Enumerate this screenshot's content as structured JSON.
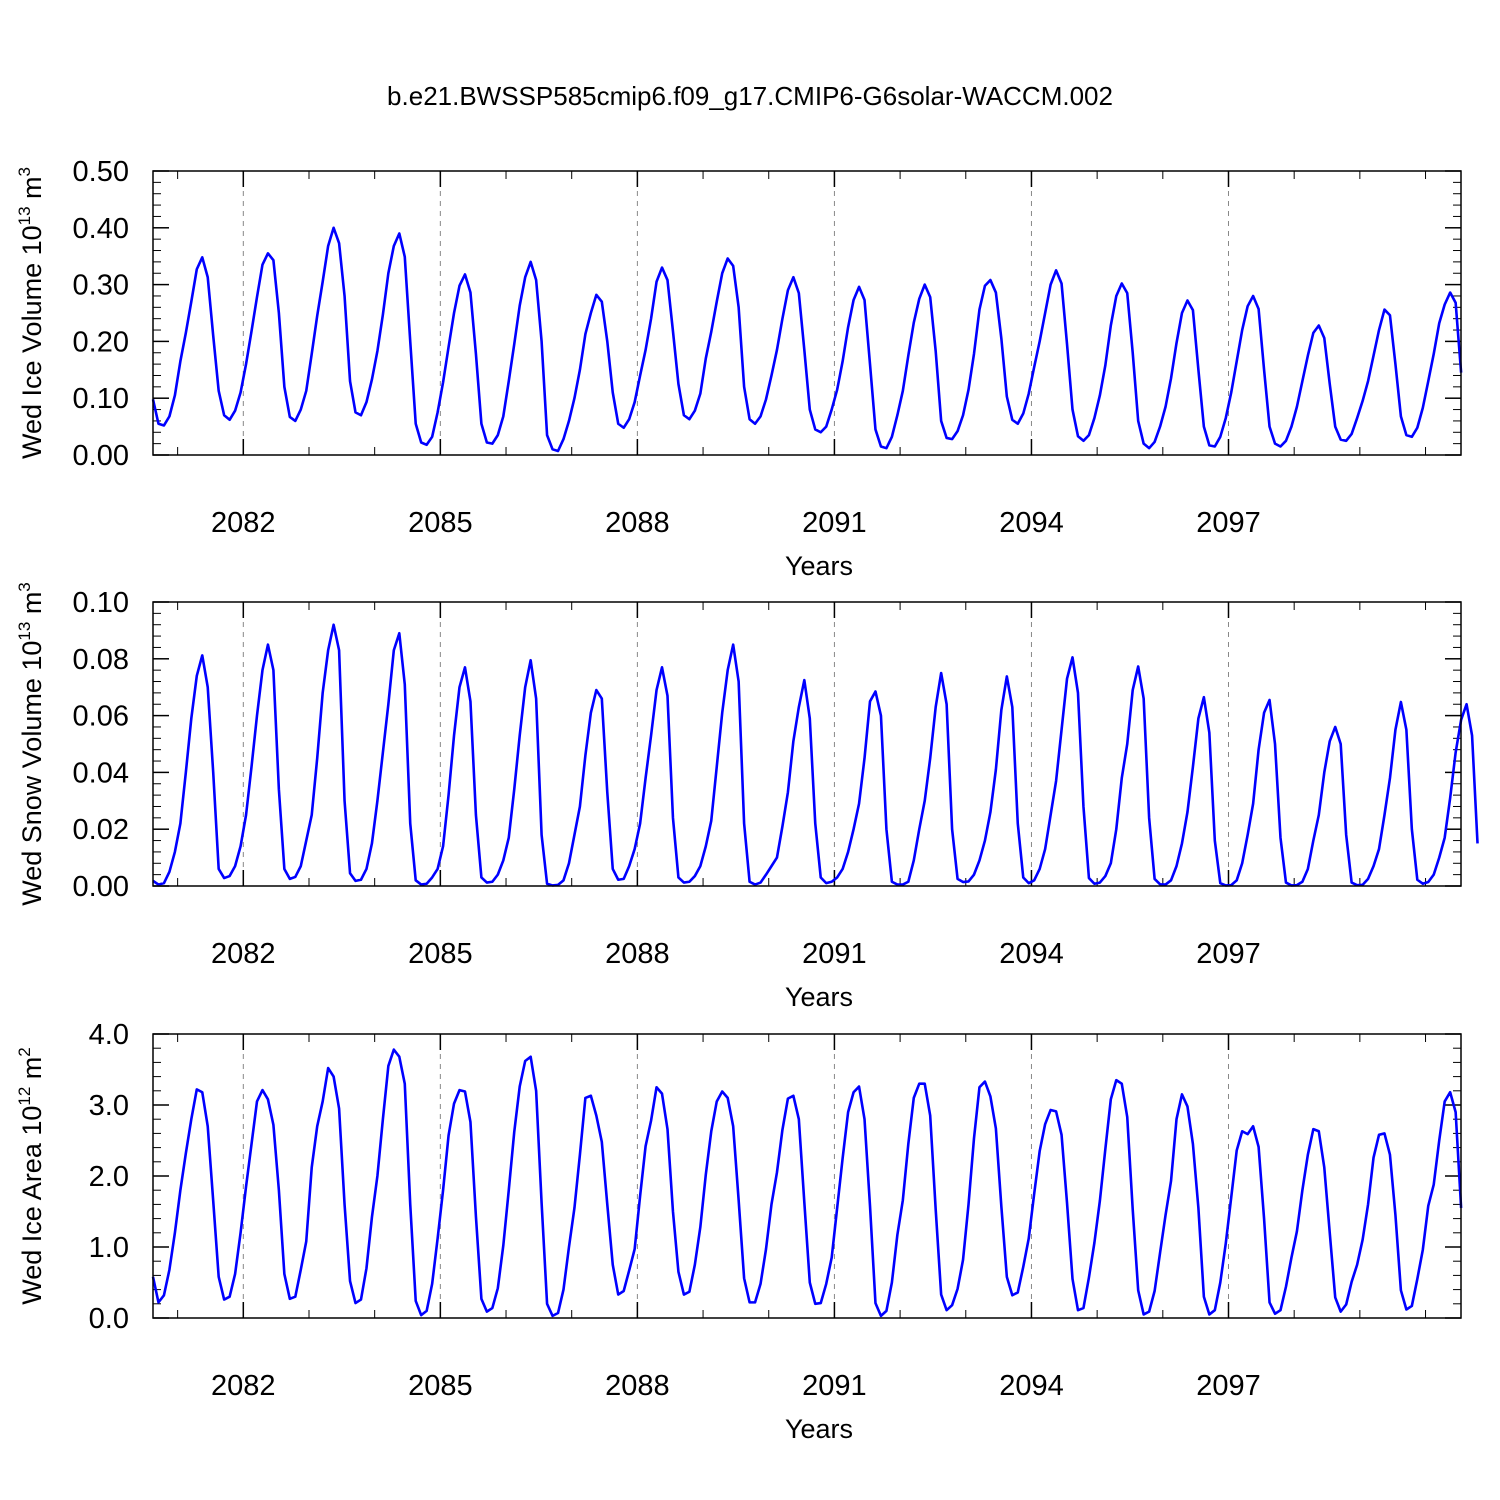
{
  "title": "b.e21.BWSSP585cmip6.f09_g17.CMIP6-G6solar-WACCM.002",
  "colors": {
    "line": "#0000ff",
    "axis": "#000000",
    "grid": "#888888"
  },
  "chart_data": [
    {
      "type": "line",
      "ylabel_main": "Wed Ice Volume 10",
      "ylabel_exp": "13",
      "ylabel_unit": " m",
      "ylabel_unit_exp": "3",
      "xlabel": "Years",
      "ylim": [
        0.0,
        0.5
      ],
      "yticks": [
        0.0,
        0.1,
        0.2,
        0.3,
        0.4,
        0.5
      ],
      "ytick_labels": [
        "0.00",
        "0.10",
        "0.20",
        "0.30",
        "0.40",
        "0.50"
      ],
      "xlim": [
        2080.625,
        2100.54
      ],
      "xticks": [
        2082,
        2085,
        2088,
        2091,
        2094,
        2097
      ],
      "xtick_labels": [
        "2082",
        "2085",
        "2088",
        "2091",
        "2094",
        "2097"
      ],
      "series": [
        {
          "name": "Wed Ice Volume",
          "x_start": 2080.625,
          "x_step": 0.0833333,
          "values": [
            0.098,
            0.055,
            0.052,
            0.068,
            0.105,
            0.165,
            0.215,
            0.27,
            0.327,
            0.348,
            0.313,
            0.21,
            0.113,
            0.07,
            0.062,
            0.078,
            0.11,
            0.16,
            0.218,
            0.278,
            0.335,
            0.355,
            0.343,
            0.25,
            0.12,
            0.067,
            0.06,
            0.08,
            0.113,
            0.178,
            0.245,
            0.305,
            0.368,
            0.4,
            0.373,
            0.28,
            0.13,
            0.075,
            0.07,
            0.093,
            0.133,
            0.183,
            0.247,
            0.32,
            0.368,
            0.39,
            0.349,
            0.2,
            0.055,
            0.022,
            0.018,
            0.032,
            0.075,
            0.128,
            0.19,
            0.25,
            0.298,
            0.318,
            0.286,
            0.178,
            0.055,
            0.022,
            0.02,
            0.035,
            0.068,
            0.13,
            0.195,
            0.263,
            0.313,
            0.34,
            0.308,
            0.2,
            0.035,
            0.01,
            0.007,
            0.028,
            0.06,
            0.1,
            0.15,
            0.213,
            0.25,
            0.282,
            0.27,
            0.2,
            0.11,
            0.055,
            0.048,
            0.063,
            0.093,
            0.14,
            0.185,
            0.24,
            0.305,
            0.33,
            0.308,
            0.218,
            0.125,
            0.07,
            0.063,
            0.078,
            0.108,
            0.17,
            0.217,
            0.27,
            0.32,
            0.346,
            0.333,
            0.26,
            0.12,
            0.063,
            0.055,
            0.068,
            0.098,
            0.14,
            0.185,
            0.24,
            0.29,
            0.313,
            0.285,
            0.185,
            0.08,
            0.045,
            0.04,
            0.05,
            0.08,
            0.115,
            0.165,
            0.225,
            0.273,
            0.296,
            0.273,
            0.16,
            0.045,
            0.015,
            0.012,
            0.032,
            0.07,
            0.113,
            0.175,
            0.233,
            0.275,
            0.3,
            0.278,
            0.183,
            0.06,
            0.03,
            0.028,
            0.042,
            0.07,
            0.115,
            0.178,
            0.256,
            0.298,
            0.308,
            0.286,
            0.205,
            0.103,
            0.062,
            0.055,
            0.073,
            0.108,
            0.155,
            0.2,
            0.25,
            0.3,
            0.325,
            0.302,
            0.195,
            0.08,
            0.033,
            0.025,
            0.035,
            0.065,
            0.105,
            0.158,
            0.228,
            0.28,
            0.302,
            0.285,
            0.18,
            0.06,
            0.02,
            0.012,
            0.023,
            0.05,
            0.085,
            0.135,
            0.197,
            0.25,
            0.272,
            0.255,
            0.15,
            0.05,
            0.017,
            0.015,
            0.032,
            0.065,
            0.11,
            0.165,
            0.22,
            0.262,
            0.28,
            0.257,
            0.15,
            0.05,
            0.02,
            0.015,
            0.025,
            0.05,
            0.085,
            0.13,
            0.175,
            0.215,
            0.228,
            0.206,
            0.125,
            0.05,
            0.027,
            0.025,
            0.037,
            0.065,
            0.095,
            0.13,
            0.175,
            0.22,
            0.256,
            0.246,
            0.16,
            0.068,
            0.035,
            0.032,
            0.048,
            0.083,
            0.13,
            0.178,
            0.232,
            0.265,
            0.286,
            0.268,
            0.145
          ]
        }
      ]
    },
    {
      "type": "line",
      "ylabel_main": "Wed Snow Volume 10",
      "ylabel_exp": "13",
      "ylabel_unit": " m",
      "ylabel_unit_exp": "3",
      "xlabel": "Years",
      "ylim": [
        0.0,
        0.1
      ],
      "yticks": [
        0.0,
        0.02,
        0.04,
        0.06,
        0.08,
        0.1
      ],
      "ytick_labels": [
        "0.00",
        "0.02",
        "0.04",
        "0.06",
        "0.08",
        "0.10"
      ],
      "xlim": [
        2080.625,
        2100.54
      ],
      "xticks": [
        2082,
        2085,
        2088,
        2091,
        2094,
        2097
      ],
      "xtick_labels": [
        "2082",
        "2085",
        "2088",
        "2091",
        "2094",
        "2097"
      ],
      "series": [
        {
          "name": "Wed Snow Volume",
          "x_start": 2080.625,
          "x_step": 0.0833333,
          "values": [
            0.0018,
            0.0005,
            0.001,
            0.005,
            0.012,
            0.022,
            0.04,
            0.059,
            0.074,
            0.0812,
            0.07,
            0.04,
            0.006,
            0.0028,
            0.0035,
            0.007,
            0.014,
            0.025,
            0.042,
            0.06,
            0.076,
            0.085,
            0.076,
            0.034,
            0.006,
            0.0025,
            0.0032,
            0.007,
            0.016,
            0.025,
            0.045,
            0.068,
            0.083,
            0.092,
            0.083,
            0.03,
            0.0045,
            0.0018,
            0.0022,
            0.006,
            0.015,
            0.03,
            0.047,
            0.064,
            0.083,
            0.089,
            0.071,
            0.022,
            0.002,
            0.0005,
            0.0008,
            0.003,
            0.006,
            0.014,
            0.032,
            0.053,
            0.07,
            0.077,
            0.065,
            0.025,
            0.003,
            0.0012,
            0.0015,
            0.004,
            0.009,
            0.017,
            0.034,
            0.053,
            0.07,
            0.0795,
            0.066,
            0.018,
            0.0008,
            0.0002,
            0.0004,
            0.002,
            0.008,
            0.018,
            0.028,
            0.046,
            0.061,
            0.069,
            0.066,
            0.033,
            0.006,
            0.0022,
            0.0025,
            0.007,
            0.013,
            0.022,
            0.038,
            0.053,
            0.069,
            0.077,
            0.067,
            0.024,
            0.003,
            0.0012,
            0.0015,
            0.0035,
            0.007,
            0.014,
            0.023,
            0.042,
            0.061,
            0.076,
            0.085,
            0.072,
            0.022,
            0.0015,
            0.0005,
            0.0012,
            0.004,
            0.007,
            0.01,
            0.021,
            0.033,
            0.051,
            0.063,
            0.0725,
            0.059,
            0.022,
            0.003,
            0.001,
            0.0015,
            0.003,
            0.006,
            0.012,
            0.02,
            0.029,
            0.045,
            0.065,
            0.0685,
            0.06,
            0.02,
            0.0015,
            0.0005,
            0.0005,
            0.0015,
            0.009,
            0.02,
            0.03,
            0.045,
            0.063,
            0.075,
            0.064,
            0.02,
            0.0025,
            0.0014,
            0.0016,
            0.004,
            0.009,
            0.016,
            0.026,
            0.041,
            0.062,
            0.0738,
            0.063,
            0.022,
            0.003,
            0.001,
            0.002,
            0.006,
            0.013,
            0.025,
            0.037,
            0.055,
            0.073,
            0.0805,
            0.068,
            0.028,
            0.0028,
            0.0008,
            0.0012,
            0.0035,
            0.008,
            0.02,
            0.038,
            0.05,
            0.069,
            0.0773,
            0.066,
            0.024,
            0.0025,
            0.0006,
            0.0005,
            0.002,
            0.007,
            0.015,
            0.026,
            0.042,
            0.059,
            0.0665,
            0.054,
            0.016,
            0.001,
            0.0002,
            0.0003,
            0.002,
            0.008,
            0.018,
            0.029,
            0.048,
            0.061,
            0.0655,
            0.05,
            0.017,
            0.0012,
            0.0002,
            0.0003,
            0.0015,
            0.006,
            0.016,
            0.025,
            0.04,
            0.051,
            0.056,
            0.05,
            0.018,
            0.0012,
            0.0003,
            0.0004,
            0.0025,
            0.007,
            0.013,
            0.025,
            0.038,
            0.055,
            0.0648,
            0.055,
            0.02,
            0.0022,
            0.0008,
            0.0014,
            0.004,
            0.01,
            0.017,
            0.031,
            0.047,
            0.0585,
            0.064,
            0.053,
            0.015
          ]
        }
      ]
    },
    {
      "type": "line",
      "ylabel_main": "Wed Ice Area 10",
      "ylabel_exp": "12",
      "ylabel_unit": " m",
      "ylabel_unit_exp": "2",
      "xlabel": "Years",
      "ylim": [
        0.0,
        4.0
      ],
      "yticks": [
        0.0,
        1.0,
        2.0,
        3.0,
        4.0
      ],
      "ytick_labels": [
        "0.0",
        "1.0",
        "2.0",
        "3.0",
        "4.0"
      ],
      "xlim": [
        2080.625,
        2100.54
      ],
      "xticks": [
        2082,
        2085,
        2088,
        2091,
        2094,
        2097
      ],
      "xtick_labels": [
        "2082",
        "2085",
        "2088",
        "2091",
        "2094",
        "2097"
      ],
      "series": [
        {
          "name": "Wed Ice Area",
          "x_start": 2080.625,
          "x_step": 0.0833333,
          "values": [
            0.58,
            0.22,
            0.32,
            0.68,
            1.2,
            1.8,
            2.32,
            2.8,
            3.22,
            3.18,
            2.7,
            1.65,
            0.58,
            0.26,
            0.3,
            0.62,
            1.2,
            1.85,
            2.45,
            3.05,
            3.21,
            3.08,
            2.72,
            1.8,
            0.62,
            0.27,
            0.3,
            0.68,
            1.08,
            2.12,
            2.7,
            3.05,
            3.52,
            3.4,
            2.95,
            1.6,
            0.52,
            0.21,
            0.26,
            0.7,
            1.42,
            2.0,
            2.8,
            3.55,
            3.78,
            3.68,
            3.3,
            1.6,
            0.24,
            0.04,
            0.1,
            0.48,
            1.12,
            1.8,
            2.57,
            3.02,
            3.21,
            3.19,
            2.76,
            1.43,
            0.27,
            0.09,
            0.14,
            0.42,
            1.02,
            1.8,
            2.62,
            3.26,
            3.62,
            3.68,
            3.2,
            1.62,
            0.2,
            0.03,
            0.07,
            0.4,
            1.0,
            1.55,
            2.3,
            3.1,
            3.13,
            2.85,
            2.48,
            1.6,
            0.75,
            0.33,
            0.38,
            0.67,
            0.97,
            1.72,
            2.42,
            2.78,
            3.25,
            3.16,
            2.66,
            1.5,
            0.65,
            0.33,
            0.37,
            0.75,
            1.28,
            2.02,
            2.63,
            3.05,
            3.19,
            3.1,
            2.7,
            1.66,
            0.56,
            0.22,
            0.22,
            0.48,
            0.97,
            1.6,
            2.05,
            2.65,
            3.09,
            3.13,
            2.8,
            1.63,
            0.5,
            0.2,
            0.21,
            0.48,
            0.85,
            1.55,
            2.25,
            2.9,
            3.18,
            3.26,
            2.8,
            1.58,
            0.21,
            0.03,
            0.1,
            0.5,
            1.17,
            1.66,
            2.45,
            3.1,
            3.3,
            3.3,
            2.85,
            1.53,
            0.33,
            0.11,
            0.18,
            0.41,
            0.82,
            1.6,
            2.53,
            3.25,
            3.33,
            3.12,
            2.67,
            1.57,
            0.58,
            0.32,
            0.36,
            0.72,
            1.12,
            1.75,
            2.35,
            2.73,
            2.93,
            2.91,
            2.58,
            1.62,
            0.55,
            0.11,
            0.14,
            0.57,
            1.06,
            1.65,
            2.38,
            3.08,
            3.35,
            3.3,
            2.83,
            1.53,
            0.39,
            0.05,
            0.09,
            0.38,
            0.92,
            1.45,
            1.93,
            2.8,
            3.15,
            2.98,
            2.45,
            1.55,
            0.3,
            0.05,
            0.11,
            0.5,
            1.05,
            1.7,
            2.36,
            2.63,
            2.59,
            2.7,
            2.41,
            1.4,
            0.22,
            0.06,
            0.11,
            0.44,
            0.85,
            1.22,
            1.8,
            2.3,
            2.66,
            2.63,
            2.12,
            1.2,
            0.29,
            0.09,
            0.19,
            0.51,
            0.75,
            1.1,
            1.6,
            2.26,
            2.58,
            2.6,
            2.3,
            1.45,
            0.39,
            0.12,
            0.17,
            0.55,
            0.96,
            1.58,
            1.88,
            2.5,
            3.05,
            3.18,
            2.9,
            1.55
          ]
        }
      ]
    }
  ]
}
